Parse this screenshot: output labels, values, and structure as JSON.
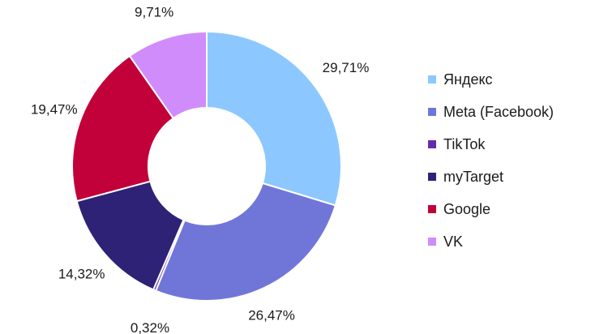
{
  "chart_data": {
    "type": "pie",
    "variant": "donut",
    "title": "",
    "legend_position": "right",
    "series": [
      {
        "name": "Яндекс",
        "value": 29.71,
        "label": "29,71%",
        "color": "#8cc8ff"
      },
      {
        "name": "Meta (Facebook)",
        "value": 26.47,
        "label": "26,47%",
        "color": "#7076d8"
      },
      {
        "name": "TikTok",
        "value": 0.32,
        "label": "0,32%",
        "color": "#6a2aa8"
      },
      {
        "name": "myTarget",
        "value": 14.32,
        "label": "14,32%",
        "color": "#2e2276"
      },
      {
        "name": "Google",
        "value": 19.47,
        "label": "19,47%",
        "color": "#c2003a"
      },
      {
        "name": "VK",
        "value": 9.71,
        "label": "9,71%",
        "color": "#d18cfb"
      }
    ]
  }
}
